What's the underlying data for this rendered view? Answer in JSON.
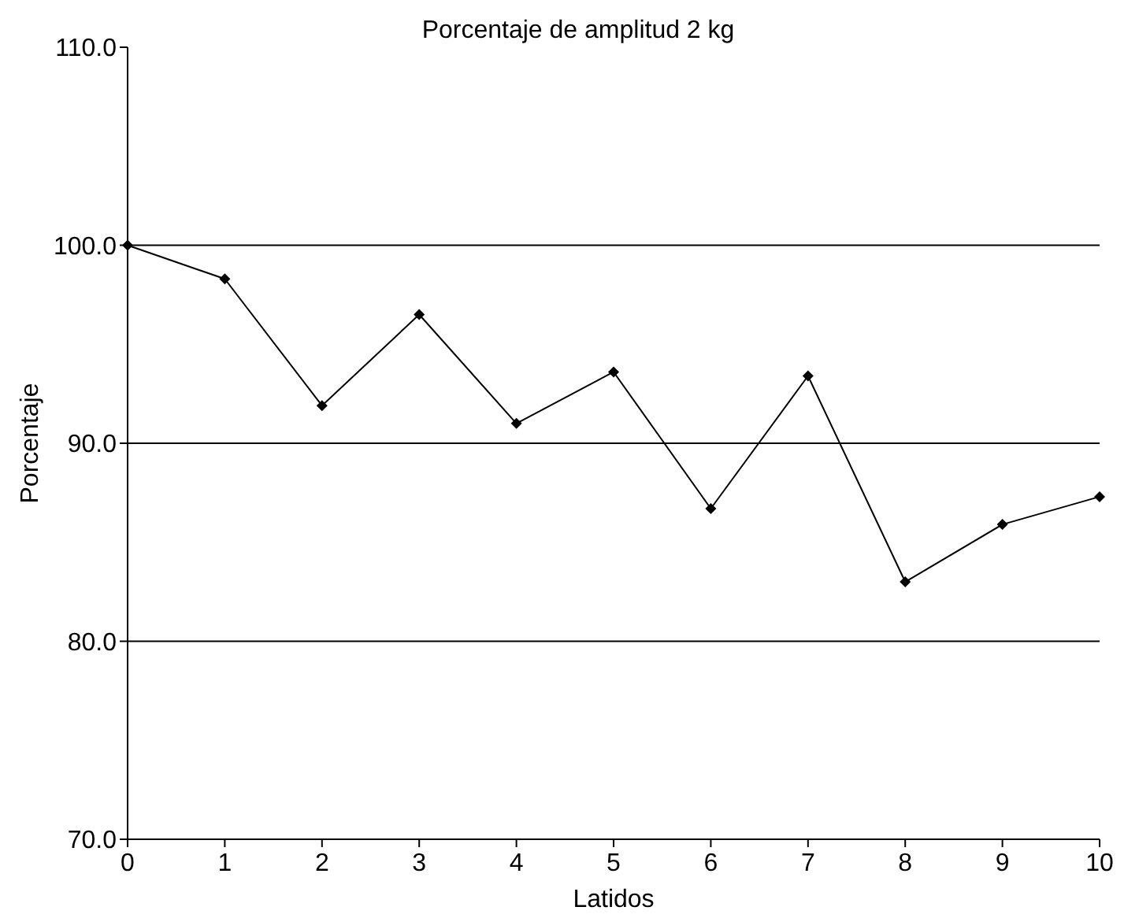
{
  "chart_data": {
    "type": "line",
    "title": "Porcentaje de amplitud 2 kg",
    "xlabel": "Latidos",
    "ylabel": "Porcentaje",
    "x": [
      0,
      1,
      2,
      3,
      4,
      5,
      6,
      7,
      8,
      9,
      10
    ],
    "series": [
      {
        "color": "#000000",
        "values": [
          100,
          98.3,
          91.9,
          96.5,
          91.0,
          93.6,
          86.7,
          93.4,
          83.0,
          85.9,
          87.3
        ]
      }
    ],
    "xlim": [
      0,
      10
    ],
    "xticks": [
      0,
      1,
      2,
      3,
      4,
      5,
      6,
      7,
      8,
      9,
      10
    ],
    "ylim": [
      70,
      110
    ],
    "yticks": [
      {
        "value": 70,
        "label": "70.0"
      },
      {
        "value": 80,
        "label": "80.0"
      },
      {
        "value": 90,
        "label": "90.0"
      },
      {
        "value": 100,
        "label": "100.0"
      },
      {
        "value": 110,
        "label": "110.0"
      }
    ],
    "grid": "y",
    "marker": "diamond",
    "line_style": "solid"
  }
}
